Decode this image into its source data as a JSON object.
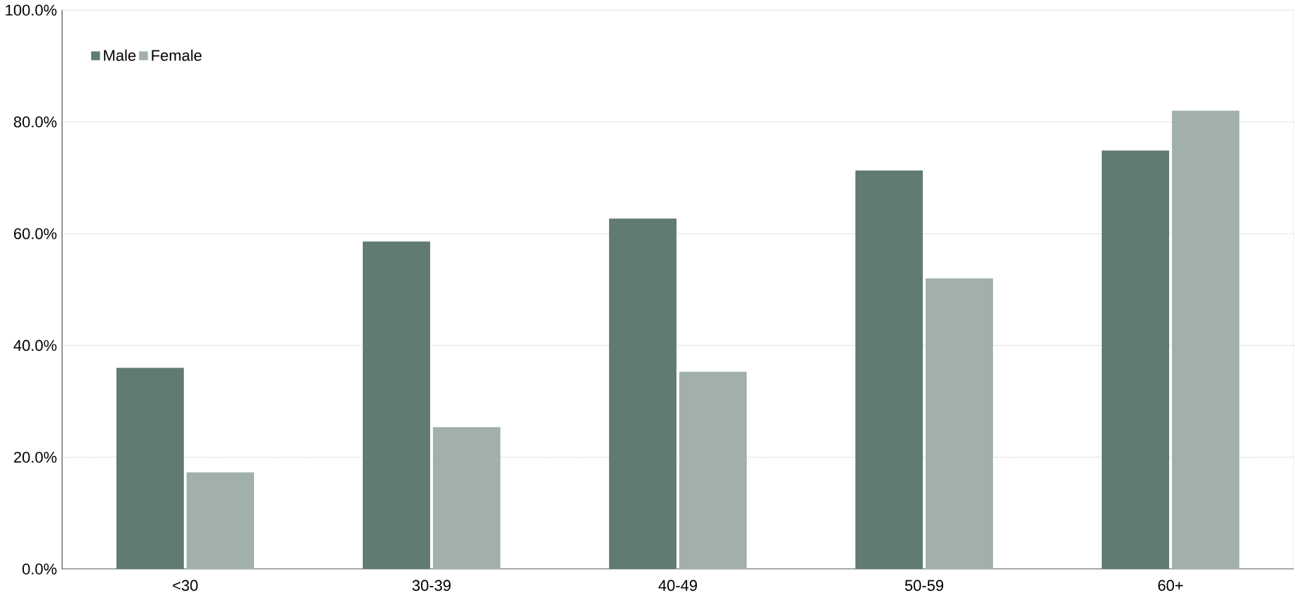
{
  "chart_data": {
    "type": "bar",
    "categories": [
      "<30",
      "30-39",
      "40-49",
      "50-59",
      "60+"
    ],
    "series": [
      {
        "name": "Male",
        "color": "#617b74",
        "values": [
          36.0,
          58.6,
          62.7,
          71.3,
          74.9
        ]
      },
      {
        "name": "Female",
        "color": "#a2b0ab",
        "values": [
          17.3,
          25.4,
          35.3,
          52.0,
          82.0
        ]
      }
    ],
    "ylim": [
      0,
      100
    ],
    "yticks": [
      {
        "value": 0,
        "label": "0.0%"
      },
      {
        "value": 20,
        "label": "20.0%"
      },
      {
        "value": 40,
        "label": "40.0%"
      },
      {
        "value": 60,
        "label": "60.0%"
      },
      {
        "value": 80,
        "label": "80.0%"
      },
      {
        "value": 100,
        "label": "100.0%"
      }
    ],
    "grid": "y",
    "legend": "top left"
  }
}
